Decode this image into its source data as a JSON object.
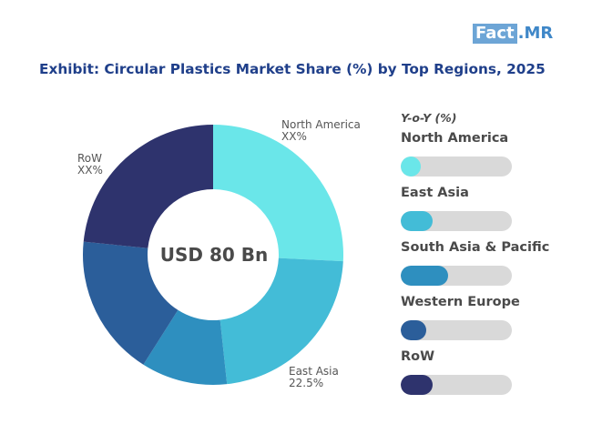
{
  "logo": {
    "part1": "Fact",
    "part2": ".MR"
  },
  "chart_data": {
    "type": "pie",
    "title": "Exhibit:  Circular Plastics Market Share (%) by Top Regions, 2025",
    "center_text": "USD 80 Bn",
    "categories": [
      "North America",
      "East Asia",
      "South Asia & Pacific",
      "Western Europe",
      "RoW"
    ],
    "values": [
      25.8,
      22.5,
      10.7,
      17.6,
      23.4
    ],
    "colors": [
      "#6ae6e9",
      "#43bcd7",
      "#2e8fbf",
      "#2b5e9a",
      "#2e336d"
    ],
    "slice_labels": [
      {
        "name": "North America",
        "value_text": "XX%"
      },
      {
        "name": "East Asia",
        "value_text": "22.5%"
      },
      {
        "name": "RoW",
        "value_text": "XX%"
      }
    ],
    "yoy": {
      "header": "Y-o-Y (%)",
      "items": [
        "North America",
        "East Asia",
        "South Asia & Pacific",
        "Western Europe",
        "RoW"
      ],
      "fill_fraction": [
        0.18,
        0.29,
        0.43,
        0.23,
        0.29
      ]
    }
  }
}
